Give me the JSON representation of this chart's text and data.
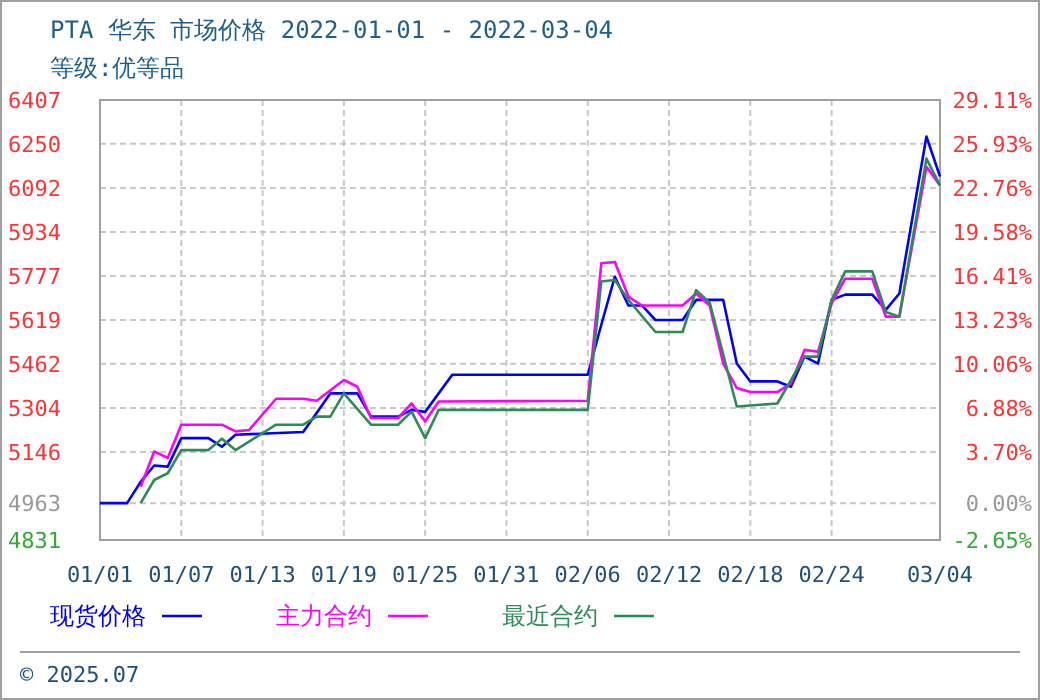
{
  "chart_data": {
    "type": "line",
    "title": "PTA 华东 市场价格 2022-01-01 - 2022-03-04",
    "subtitle": "等级:优等品",
    "annotations": [
      "© 2025.07"
    ],
    "xlim": [
      "2022-01-01",
      "2022-03-04"
    ],
    "xticks": [
      {
        "value": "2022-01-01",
        "label": "01/01"
      },
      {
        "value": "2022-01-07",
        "label": "01/07"
      },
      {
        "value": "2022-01-13",
        "label": "01/13"
      },
      {
        "value": "2022-01-19",
        "label": "01/19"
      },
      {
        "value": "2022-01-25",
        "label": "01/25"
      },
      {
        "value": "2022-01-31",
        "label": "01/31"
      },
      {
        "value": "2022-02-06",
        "label": "02/06"
      },
      {
        "value": "2022-02-12",
        "label": "02/12"
      },
      {
        "value": "2022-02-18",
        "label": "02/18"
      },
      {
        "value": "2022-02-24",
        "label": "02/24"
      },
      {
        "value": "2022-03-04",
        "label": "03/04"
      }
    ],
    "ylim": [
      4831,
      6407
    ],
    "yticks": [
      4831,
      4963,
      5146,
      5304,
      5462,
      5619,
      5777,
      5934,
      6092,
      6250,
      6407
    ],
    "y2lim": [
      -2.65,
      29.11
    ],
    "y2ticks": [
      {
        "value": -2.65,
        "label": "-2.65%"
      },
      {
        "value": 0,
        "label": "0.00%"
      },
      {
        "value": 3.7,
        "label": "3.70%"
      },
      {
        "value": 6.88,
        "label": "6.88%"
      },
      {
        "value": 10.06,
        "label": "10.06%"
      },
      {
        "value": 13.23,
        "label": "13.23%"
      },
      {
        "value": 16.41,
        "label": "16.41%"
      },
      {
        "value": 19.58,
        "label": "19.58%"
      },
      {
        "value": 22.76,
        "label": "22.76%"
      },
      {
        "value": 25.93,
        "label": "25.93%"
      },
      {
        "value": 29.11,
        "label": "29.11%"
      }
    ],
    "grid": true,
    "legend": "bottom",
    "line_style": "solid",
    "series": [
      {
        "name": "现货价格",
        "color": "#0000ff",
        "x": [
          "2022-01-01",
          "2022-01-03",
          "2022-01-04",
          "2022-01-05",
          "2022-01-06",
          "2022-01-07",
          "2022-01-09",
          "2022-01-10",
          "2022-01-11",
          "2022-01-16",
          "2022-01-18",
          "2022-01-20",
          "2022-01-21",
          "2022-01-23",
          "2022-01-24",
          "2022-01-25",
          "2022-01-27",
          "2022-02-06",
          "2022-02-07",
          "2022-02-08",
          "2022-02-09",
          "2022-02-10",
          "2022-02-11",
          "2022-02-13",
          "2022-02-14",
          "2022-02-16",
          "2022-02-17",
          "2022-02-18",
          "2022-02-20",
          "2022-02-21",
          "2022-02-22",
          "2022-02-23",
          "2022-02-24",
          "2022-02-25",
          "2022-02-27",
          "2022-02-28",
          "2022-03-01",
          "2022-03-03",
          "2022-03-04"
        ],
        "values": [
          4963,
          4963,
          5039,
          5098,
          5094,
          5196,
          5196,
          5165,
          5208,
          5218,
          5356,
          5356,
          5273,
          5273,
          5297,
          5290,
          5423,
          5423,
          5602,
          5774,
          5671,
          5671,
          5619,
          5619,
          5691,
          5691,
          5463,
          5399,
          5399,
          5380,
          5488,
          5463,
          5691,
          5710,
          5710,
          5655,
          5714,
          6276,
          6133
        ]
      },
      {
        "name": "主力合约",
        "color": "#ff00ff",
        "x": [
          "2022-01-04",
          "2022-01-05",
          "2022-01-06",
          "2022-01-07",
          "2022-01-10",
          "2022-01-11",
          "2022-01-12",
          "2022-01-14",
          "2022-01-16",
          "2022-01-17",
          "2022-01-19",
          "2022-01-20",
          "2022-01-21",
          "2022-01-23",
          "2022-01-24",
          "2022-01-25",
          "2022-01-26",
          "2022-02-06",
          "2022-02-07",
          "2022-02-08",
          "2022-02-09",
          "2022-02-10",
          "2022-02-13",
          "2022-02-14",
          "2022-02-15",
          "2022-02-16",
          "2022-02-17",
          "2022-02-18",
          "2022-02-20",
          "2022-02-21",
          "2022-02-22",
          "2022-02-23",
          "2022-02-24",
          "2022-02-25",
          "2022-02-27",
          "2022-02-28",
          "2022-03-01",
          "2022-03-03",
          "2022-03-04"
        ],
        "values": [
          5022,
          5148,
          5125,
          5244,
          5244,
          5220,
          5225,
          5337,
          5337,
          5330,
          5404,
          5380,
          5268,
          5268,
          5320,
          5256,
          5327,
          5330,
          5822,
          5827,
          5703,
          5671,
          5671,
          5714,
          5671,
          5463,
          5375,
          5361,
          5361,
          5392,
          5512,
          5505,
          5678,
          5767,
          5767,
          5631,
          5631,
          6168,
          6101
        ]
      },
      {
        "name": "最近合约",
        "color": "#2e8b57",
        "x": [
          "2022-01-04",
          "2022-01-05",
          "2022-01-06",
          "2022-01-07",
          "2022-01-09",
          "2022-01-10",
          "2022-01-11",
          "2022-01-14",
          "2022-01-16",
          "2022-01-17",
          "2022-01-18",
          "2022-01-19",
          "2022-01-21",
          "2022-01-23",
          "2022-01-24",
          "2022-01-25",
          "2022-01-26",
          "2022-02-06",
          "2022-02-07",
          "2022-02-08",
          "2022-02-09",
          "2022-02-11",
          "2022-02-13",
          "2022-02-14",
          "2022-02-15",
          "2022-02-17",
          "2022-02-20",
          "2022-02-22",
          "2022-02-23",
          "2022-02-24",
          "2022-02-25",
          "2022-02-27",
          "2022-02-28",
          "2022-03-01",
          "2022-03-03",
          "2022-03-04"
        ],
        "values": [
          4963,
          5046,
          5070,
          5153,
          5153,
          5194,
          5153,
          5244,
          5244,
          5273,
          5273,
          5356,
          5244,
          5244,
          5291,
          5196,
          5297,
          5297,
          5757,
          5762,
          5691,
          5576,
          5576,
          5726,
          5681,
          5309,
          5320,
          5488,
          5488,
          5691,
          5793,
          5793,
          5648,
          5631,
          6197,
          6101
        ]
      }
    ]
  }
}
